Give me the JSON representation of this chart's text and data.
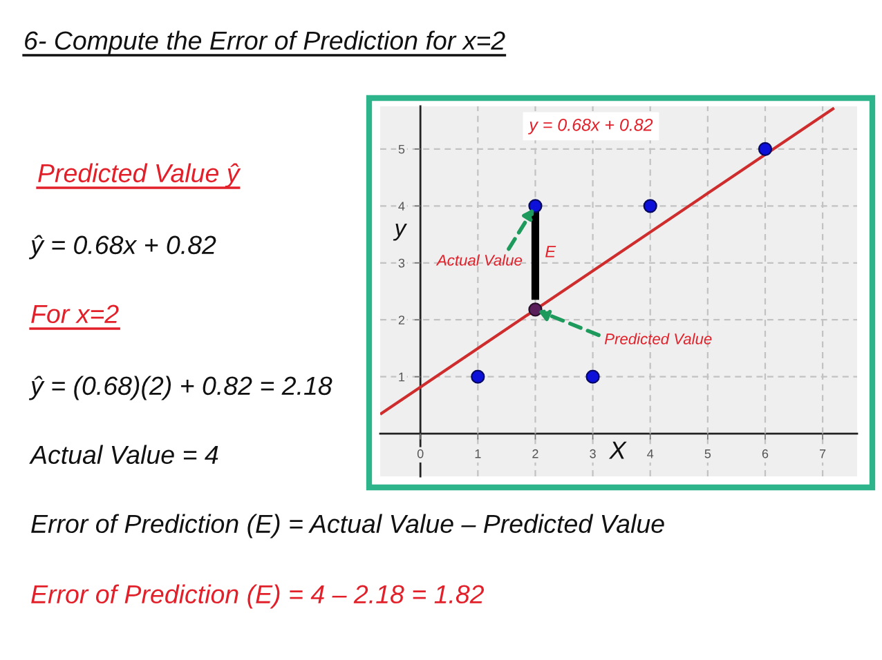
{
  "chart_data": {
    "type": "scatter",
    "title": "6- Compute the Error of Prediction for x=2",
    "xlabel": "X",
    "ylabel": "y",
    "xlim": [
      -0.7,
      7.6
    ],
    "ylim": [
      -0.75,
      5.75
    ],
    "xticks": [
      0,
      1,
      2,
      3,
      4,
      5,
      6,
      7
    ],
    "yticks": [
      1,
      2,
      3,
      4,
      5
    ],
    "grid": true,
    "marker": "circle",
    "series": [
      {
        "type": "line",
        "marker": "none",
        "color": "#cf2d2d",
        "x": [
          -0.7,
          7.2
        ],
        "values": [
          0.34,
          5.72
        ]
      },
      {
        "color": "#0c10d8",
        "x": [
          1,
          2,
          3,
          4,
          6
        ],
        "values": [
          1,
          4,
          1,
          4,
          5
        ]
      },
      {
        "type": "line",
        "marker": "none",
        "color": "#000000",
        "x": [
          2,
          2
        ],
        "values": [
          2.35,
          4
        ]
      },
      {
        "color": "#5a1f5a",
        "x": [
          2
        ],
        "values": [
          2.18
        ]
      }
    ],
    "annotations": [
      "y = 0.68x + 0.82",
      {
        "text": "Actual Value",
        "x": 2,
        "y": 4
      },
      "E",
      {
        "text": "Predicted Value",
        "x": 2,
        "y": 2.18
      },
      "Predicted Value ŷ",
      "ŷ = 0.68x + 0.82",
      "For x=2",
      "ŷ = (0.68)(2) + 0.82 = 2.18",
      "Actual Value = 4",
      "Error of Prediction (E) = Actual Value – Predicted Value",
      "Error of Prediction (E) = 4 – 2.18 = 1.82"
    ]
  }
}
